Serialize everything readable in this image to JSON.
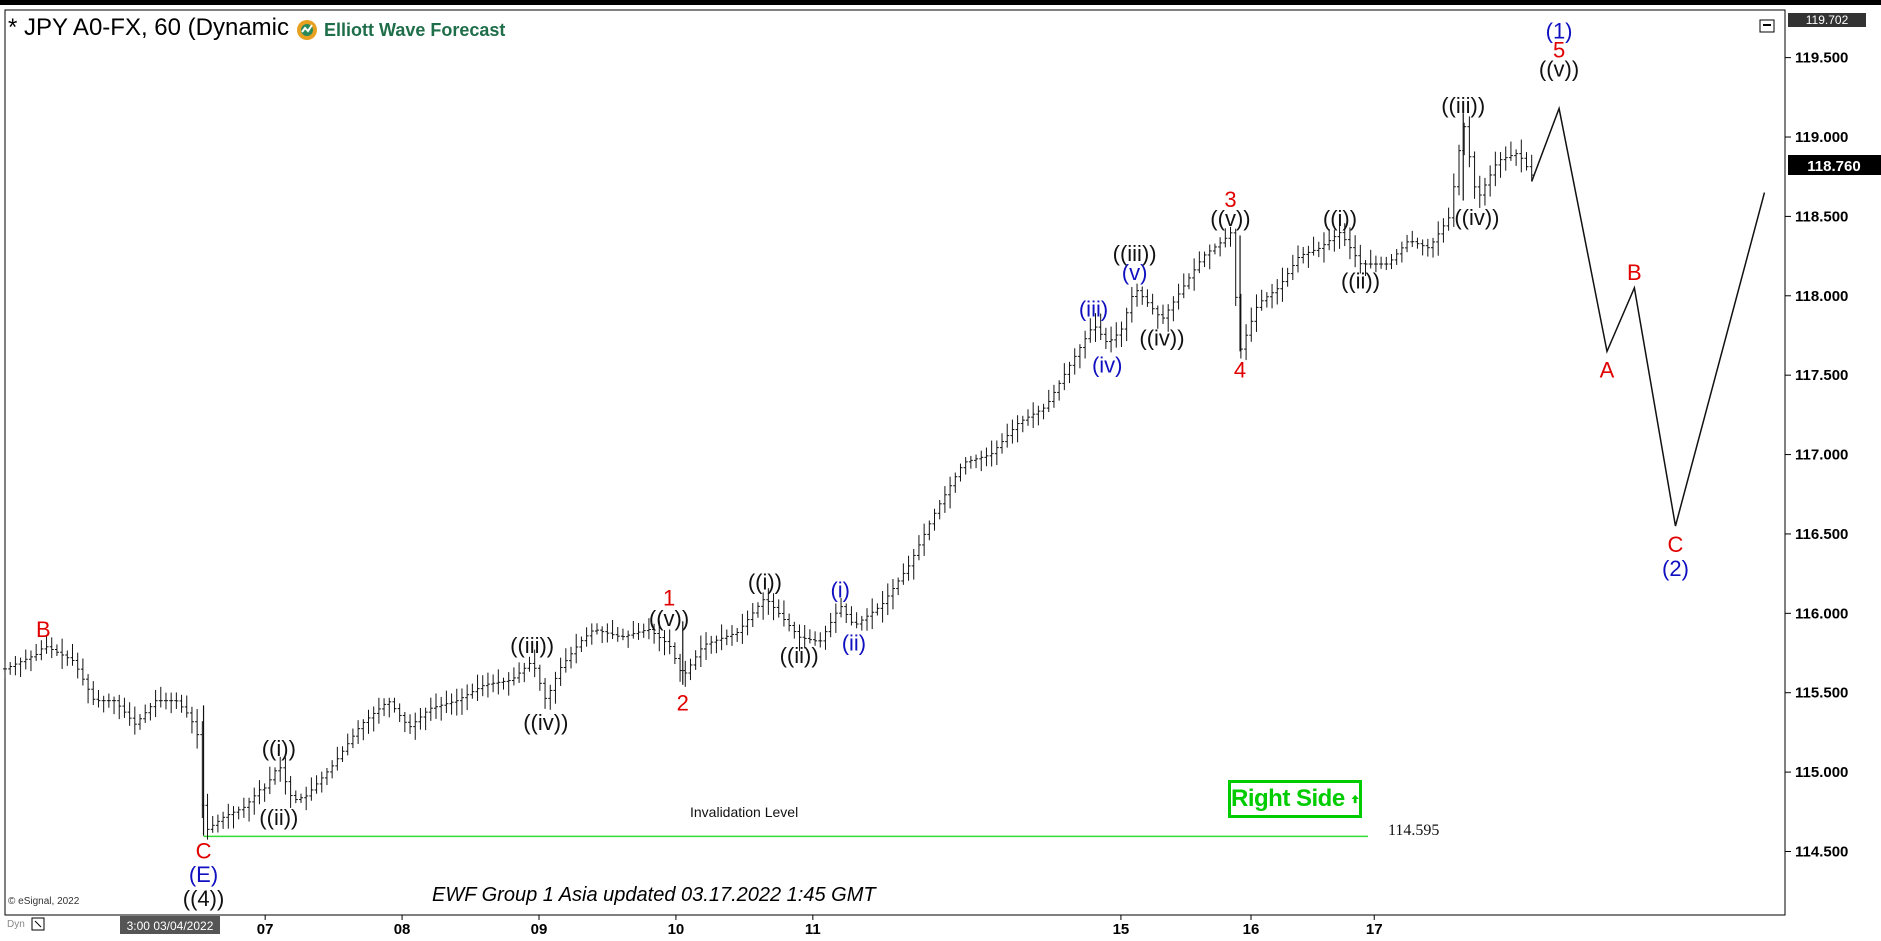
{
  "header": {
    "title": "* JPY A0-FX, 60 (Dynamic"
  },
  "logo": {
    "text": "Elliott Wave Forecast",
    "icon": "ewf-gear-logo-icon"
  },
  "footer": {
    "note": "EWF Group 1 Asia updated 03.17.2022 1:45 GMT",
    "copyright": "© eSignal, 2022",
    "time_label": "3:00 03/04/2022",
    "dyn_label": "Dyn"
  },
  "badge": {
    "text": "Right Side",
    "icon": "up-arrow-icon",
    "color": "#00cc00"
  },
  "invalidation": {
    "label": "Invalidation Level",
    "price_label": "114.595",
    "price": 114.595,
    "color": "#33dd33"
  },
  "price_box": {
    "top": "119.702",
    "current": "118.760"
  },
  "chart_data": {
    "type": "bar",
    "title": "* JPY A0-FX, 60",
    "ylim": [
      114.1,
      119.8
    ],
    "y_ticks": [
      114.5,
      115.0,
      115.5,
      116.0,
      116.5,
      117.0,
      117.5,
      118.0,
      118.5,
      119.0,
      119.5
    ],
    "y_tick_labels": [
      "114.500",
      "115.000",
      "115.500",
      "116.000",
      "116.500",
      "117.000",
      "117.500",
      "118.000",
      "118.500",
      "119.000",
      "119.500"
    ],
    "x_tick_labels": [
      "07",
      "08",
      "09",
      "10",
      "11",
      "15",
      "16",
      "17"
    ],
    "x_ticks": [
      6.0,
      7.0,
      8.0,
      9.0,
      10.0,
      12.25,
      13.2,
      14.1
    ],
    "xlim": [
      4.1,
      17.1
    ],
    "grid": false,
    "price_path": [
      [
        4.1,
        115.65
      ],
      [
        4.35,
        115.75
      ],
      [
        4.38,
        115.8
      ],
      [
        4.6,
        115.7
      ],
      [
        4.75,
        115.45
      ],
      [
        4.9,
        115.45
      ],
      [
        5.05,
        115.3
      ],
      [
        5.2,
        115.45
      ],
      [
        5.35,
        115.45
      ],
      [
        5.45,
        115.35
      ],
      [
        5.52,
        115.2
      ],
      [
        5.55,
        114.62
      ],
      [
        5.7,
        114.72
      ],
      [
        5.85,
        114.78
      ],
      [
        5.97,
        114.9
      ],
      [
        6.0,
        114.9
      ],
      [
        6.1,
        115.05
      ],
      [
        6.2,
        114.82
      ],
      [
        6.3,
        114.85
      ],
      [
        6.5,
        115.05
      ],
      [
        6.7,
        115.3
      ],
      [
        6.9,
        115.45
      ],
      [
        7.05,
        115.28
      ],
      [
        7.2,
        115.4
      ],
      [
        7.4,
        115.45
      ],
      [
        7.6,
        115.55
      ],
      [
        7.8,
        115.58
      ],
      [
        7.95,
        115.7
      ],
      [
        8.05,
        115.45
      ],
      [
        8.15,
        115.65
      ],
      [
        8.3,
        115.82
      ],
      [
        8.4,
        115.9
      ],
      [
        8.6,
        115.85
      ],
      [
        8.8,
        115.9
      ],
      [
        8.95,
        115.8
      ],
      [
        9.05,
        115.6
      ],
      [
        9.2,
        115.8
      ],
      [
        9.45,
        115.88
      ],
      [
        9.65,
        116.1
      ],
      [
        9.9,
        115.85
      ],
      [
        10.05,
        115.82
      ],
      [
        10.2,
        116.05
      ],
      [
        10.3,
        115.92
      ],
      [
        10.5,
        116.05
      ],
      [
        10.7,
        116.3
      ],
      [
        10.9,
        116.65
      ],
      [
        11.1,
        116.95
      ],
      [
        11.3,
        117.0
      ],
      [
        11.5,
        117.2
      ],
      [
        11.7,
        117.3
      ],
      [
        11.8,
        117.45
      ],
      [
        11.9,
        117.6
      ],
      [
        12.05,
        117.82
      ],
      [
        12.15,
        117.7
      ],
      [
        12.25,
        117.78
      ],
      [
        12.35,
        118.05
      ],
      [
        12.55,
        117.85
      ],
      [
        12.7,
        118.05
      ],
      [
        12.85,
        118.25
      ],
      [
        13.0,
        118.35
      ],
      [
        13.05,
        118.4
      ],
      [
        13.12,
        117.65
      ],
      [
        13.25,
        117.95
      ],
      [
        13.4,
        118.05
      ],
      [
        13.55,
        118.25
      ],
      [
        13.7,
        118.3
      ],
      [
        13.85,
        118.4
      ],
      [
        14.0,
        118.2
      ],
      [
        14.2,
        118.2
      ],
      [
        14.35,
        118.35
      ],
      [
        14.5,
        118.3
      ],
      [
        14.65,
        118.5
      ],
      [
        14.75,
        119.1
      ],
      [
        14.85,
        118.6
      ],
      [
        15.0,
        118.85
      ],
      [
        15.15,
        118.9
      ],
      [
        15.25,
        118.76
      ]
    ],
    "projection_path": [
      [
        15.25,
        118.72
      ],
      [
        15.45,
        119.18
      ],
      [
        15.8,
        117.65
      ],
      [
        16.0,
        118.05
      ],
      [
        16.3,
        116.55
      ],
      [
        16.95,
        118.65
      ]
    ],
    "wave_labels": [
      {
        "text": "B",
        "x": 4.38,
        "y": 115.85,
        "color": "red",
        "pos": "above"
      },
      {
        "text": "C",
        "x": 5.55,
        "y": 114.57,
        "color": "red",
        "pos": "below"
      },
      {
        "text": "(E)",
        "x": 5.55,
        "y": 114.42,
        "color": "blue",
        "pos": "below"
      },
      {
        "text": "((4))",
        "x": 5.55,
        "y": 114.27,
        "color": "black",
        "pos": "below"
      },
      {
        "text": "((i))",
        "x": 6.1,
        "y": 115.1,
        "color": "black",
        "pos": "above"
      },
      {
        "text": "((ii))",
        "x": 6.1,
        "y": 114.78,
        "color": "black",
        "pos": "below"
      },
      {
        "text": "((iii))",
        "x": 7.95,
        "y": 115.75,
        "color": "black",
        "pos": "above"
      },
      {
        "text": "((iv))",
        "x": 8.05,
        "y": 115.38,
        "color": "black",
        "pos": "below"
      },
      {
        "text": "1",
        "x": 8.95,
        "y": 116.05,
        "color": "red",
        "pos": "above"
      },
      {
        "text": "((v))",
        "x": 8.95,
        "y": 115.92,
        "color": "black",
        "pos": "above"
      },
      {
        "text": "2",
        "x": 9.05,
        "y": 115.5,
        "color": "red",
        "pos": "below"
      },
      {
        "text": "((i))",
        "x": 9.65,
        "y": 116.15,
        "color": "black",
        "pos": "above"
      },
      {
        "text": "((ii))",
        "x": 9.9,
        "y": 115.8,
        "color": "black",
        "pos": "below"
      },
      {
        "text": "(i)",
        "x": 10.2,
        "y": 116.1,
        "color": "blue",
        "pos": "above"
      },
      {
        "text": "(ii)",
        "x": 10.3,
        "y": 115.88,
        "color": "blue",
        "pos": "below"
      },
      {
        "text": "(iii)",
        "x": 12.05,
        "y": 117.87,
        "color": "blue",
        "pos": "above"
      },
      {
        "text": "(iv)",
        "x": 12.15,
        "y": 117.63,
        "color": "blue",
        "pos": "below"
      },
      {
        "text": "(v)",
        "x": 12.35,
        "y": 118.1,
        "color": "blue",
        "pos": "above"
      },
      {
        "text": "((iii))",
        "x": 12.35,
        "y": 118.22,
        "color": "black",
        "pos": "above"
      },
      {
        "text": "((iv))",
        "x": 12.55,
        "y": 117.8,
        "color": "black",
        "pos": "below"
      },
      {
        "text": "3",
        "x": 13.05,
        "y": 118.56,
        "color": "red",
        "pos": "above"
      },
      {
        "text": "((v))",
        "x": 13.05,
        "y": 118.44,
        "color": "black",
        "pos": "above"
      },
      {
        "text": "4",
        "x": 13.12,
        "y": 117.6,
        "color": "red",
        "pos": "below"
      },
      {
        "text": "((i))",
        "x": 13.85,
        "y": 118.44,
        "color": "black",
        "pos": "above"
      },
      {
        "text": "((ii))",
        "x": 14.0,
        "y": 118.16,
        "color": "black",
        "pos": "below"
      },
      {
        "text": "((iii))",
        "x": 14.75,
        "y": 119.15,
        "color": "black",
        "pos": "above"
      },
      {
        "text": "((iv))",
        "x": 14.85,
        "y": 118.56,
        "color": "black",
        "pos": "below"
      },
      {
        "text": "(1)",
        "x": 15.45,
        "y": 119.62,
        "color": "blue",
        "pos": "above"
      },
      {
        "text": "5",
        "x": 15.45,
        "y": 119.5,
        "color": "red",
        "pos": "above"
      },
      {
        "text": "((v))",
        "x": 15.45,
        "y": 119.38,
        "color": "black",
        "pos": "above"
      },
      {
        "text": "A",
        "x": 15.8,
        "y": 117.6,
        "color": "red",
        "pos": "below"
      },
      {
        "text": "B",
        "x": 16.0,
        "y": 118.1,
        "color": "red",
        "pos": "above"
      },
      {
        "text": "C",
        "x": 16.3,
        "y": 116.5,
        "color": "red",
        "pos": "below"
      },
      {
        "text": "(2)",
        "x": 16.3,
        "y": 116.35,
        "color": "blue",
        "pos": "below"
      }
    ]
  }
}
